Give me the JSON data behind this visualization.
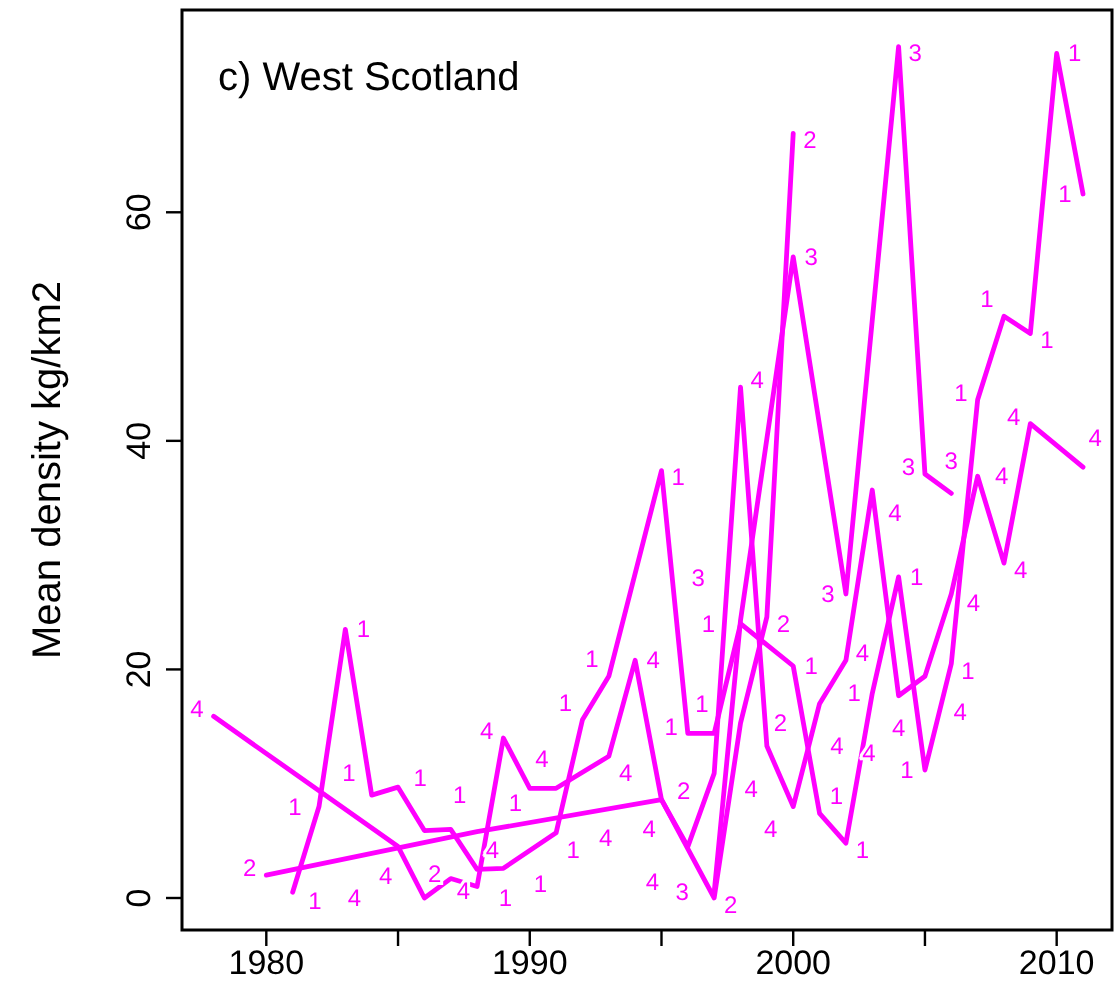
{
  "chart_data": {
    "type": "line",
    "title": "c) West Scotland",
    "ylabel": "Mean density kg/km2",
    "xlim": [
      1976.8,
      2012.1
    ],
    "ylim": [
      -2.8,
      77.7
    ],
    "xticks": [
      1980,
      {
        "value": 1985,
        "label": null
      },
      1990,
      {
        "value": 1995,
        "label": null
      },
      2000,
      {
        "value": 2005,
        "label": null
      },
      2010
    ],
    "yticks": [
      0,
      20,
      40,
      60
    ],
    "grid": false,
    "line_style": "solid",
    "series": [
      {
        "name": "1",
        "color": "#ff00ff",
        "x": [
          1981,
          1982,
          1983,
          1984,
          1985,
          1986,
          1987,
          1988,
          1989,
          1991,
          1992,
          1993,
          1995,
          1996,
          1997,
          1998,
          2000,
          2001,
          2002,
          2003,
          2004,
          2005,
          2006,
          2007,
          2008,
          2009,
          2010,
          2011
        ],
        "values": [
          0.5,
          8,
          23.5,
          9,
          9.7,
          5.9,
          6,
          2.5,
          2.6,
          5.7,
          15.6,
          19.4,
          37.4,
          14.4,
          14.4,
          24,
          20.3,
          7.4,
          4.8,
          17.9,
          28.1,
          11.2,
          20.5,
          43.6,
          50.9,
          49.4,
          73.9,
          61.6
        ]
      },
      {
        "name": "2",
        "color": "#ff00ff",
        "x": [
          1980,
          1988,
          1995,
          1997,
          1998,
          1999,
          2000
        ],
        "values": [
          2,
          5.8,
          8.6,
          0,
          15.3,
          24.6,
          66.9
        ]
      },
      {
        "name": "3",
        "color": "#ff00ff",
        "x": [
          1997,
          1998,
          2000,
          2002,
          2004,
          2005,
          2006
        ],
        "values": [
          0.5,
          24.3,
          56.1,
          26.6,
          74.5,
          37.1,
          35.4
        ]
      },
      {
        "name": "4",
        "color": "#ff00ff",
        "x": [
          1978,
          1985,
          1986,
          1987,
          1988,
          1989,
          1990,
          1991,
          1993,
          1994,
          1995,
          1996,
          1997,
          1998,
          1999,
          2000,
          2001,
          2002,
          2003,
          2004,
          2005,
          2006,
          2007,
          2008,
          2009,
          2011
        ],
        "values": [
          15.9,
          4.5,
          0,
          1.7,
          1,
          14,
          9.6,
          9.6,
          12.4,
          20.8,
          8.6,
          4.5,
          10.9,
          44.7,
          13.3,
          8,
          17,
          20.8,
          35.7,
          17.7,
          19.4,
          26.6,
          36.9,
          29.3,
          41.5,
          37.7
        ]
      }
    ]
  }
}
